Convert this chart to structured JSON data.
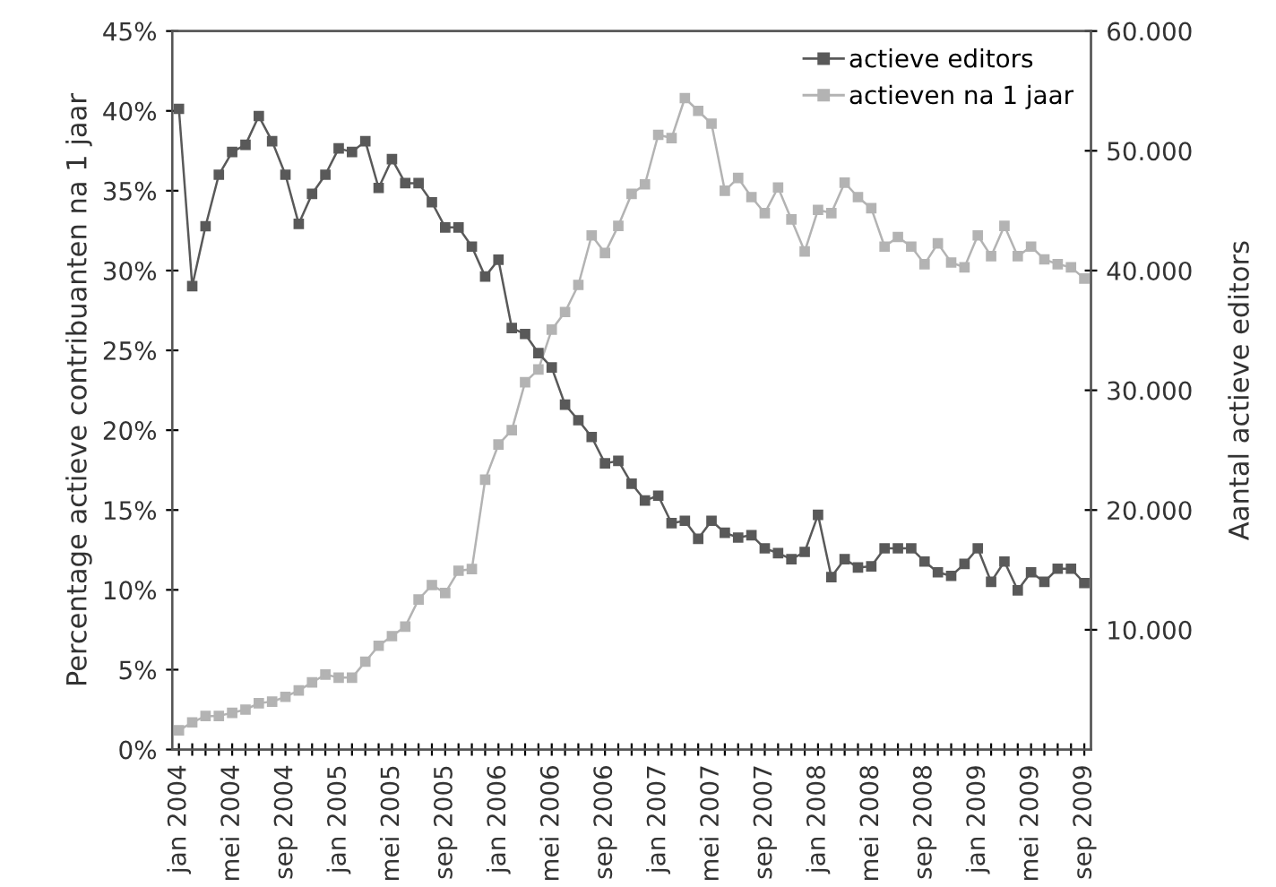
{
  "chart_data": {
    "type": "line",
    "categories": [
      "jan 2004",
      null,
      null,
      null,
      "mei 2004",
      null,
      null,
      null,
      "sep 2004",
      null,
      null,
      null,
      "jan 2005",
      null,
      null,
      null,
      "mei 2005",
      null,
      null,
      null,
      "sep 2005",
      null,
      null,
      null,
      "jan 2006",
      null,
      null,
      null,
      "mei 2006",
      null,
      null,
      null,
      "sep 2006",
      null,
      null,
      null,
      "jan 2007",
      null,
      null,
      null,
      "mei 2007",
      null,
      null,
      null,
      "sep 2007",
      null,
      null,
      null,
      "jan 2008",
      null,
      null,
      null,
      "mei 2008",
      null,
      null,
      null,
      "sep 2008",
      null,
      null,
      null,
      "jan 2009",
      null,
      null,
      null,
      "mei 2009",
      null,
      null,
      null,
      "sep 2009"
    ],
    "ylabel": "Percentage actieve contribuanten na 1 jaar",
    "y2label": "Aantal actieve editors",
    "ylim": [
      0,
      45
    ],
    "yticks": [
      {
        "value": 0,
        "label": "0%"
      },
      {
        "value": 5,
        "label": "5%"
      },
      {
        "value": 10,
        "label": "10%"
      },
      {
        "value": 15,
        "label": "15%"
      },
      {
        "value": 20,
        "label": "20%"
      },
      {
        "value": 25,
        "label": "25%"
      },
      {
        "value": 30,
        "label": "30%"
      },
      {
        "value": 35,
        "label": "35%"
      },
      {
        "value": 40,
        "label": "40%"
      },
      {
        "value": 45,
        "label": "45%"
      }
    ],
    "y2lim": [
      0,
      60000
    ],
    "y2ticks": [
      {
        "value": 10000,
        "label": "10.000"
      },
      {
        "value": 20000,
        "label": "20.000"
      },
      {
        "value": 30000,
        "label": "30.000"
      },
      {
        "value": 40000,
        "label": "40.000"
      },
      {
        "value": 50000,
        "label": "50.000"
      },
      {
        "value": 60000,
        "label": "60.000"
      }
    ],
    "series": [
      {
        "name": "actieve editors",
        "color": "#595959",
        "axis": "y2",
        "values": [
          53500,
          38700,
          43700,
          48000,
          49900,
          50500,
          52900,
          50800,
          48000,
          43900,
          46400,
          48000,
          50200,
          49900,
          50800,
          46900,
          49300,
          47300,
          47300,
          45700,
          43600,
          43600,
          42000,
          39500,
          40900,
          35200,
          34700,
          33100,
          31900,
          28800,
          27500,
          26100,
          23900,
          24100,
          22200,
          20800,
          21200,
          18900,
          19100,
          17600,
          19100,
          18100,
          17700,
          17900,
          16800,
          16400,
          15900,
          16500,
          19600,
          14400,
          15900,
          15200,
          15300,
          16800,
          16800,
          16800,
          15700,
          14800,
          14500,
          15500,
          16800,
          14000,
          15700,
          13300,
          14800,
          14000,
          15100,
          15100,
          13900
        ]
      },
      {
        "name": "actieven na 1 jaar",
        "color": "#b3b3b3",
        "values": [
          1.2,
          1.7,
          2.1,
          2.1,
          2.3,
          2.5,
          2.9,
          3.0,
          3.3,
          3.7,
          4.2,
          4.7,
          4.5,
          4.5,
          5.5,
          6.5,
          7.1,
          7.7,
          9.4,
          10.3,
          9.8,
          11.2,
          11.3,
          16.9,
          19.1,
          20.0,
          23.0,
          23.8,
          26.3,
          27.4,
          29.1,
          32.2,
          31.1,
          32.8,
          34.8,
          35.4,
          38.5,
          38.3,
          40.8,
          40.0,
          39.2,
          35.0,
          35.8,
          34.6,
          33.6,
          35.2,
          33.2,
          31.2,
          33.8,
          33.6,
          35.5,
          34.6,
          33.9,
          31.5,
          32.1,
          31.5,
          30.4,
          31.7,
          30.5,
          30.2,
          32.2,
          30.9,
          32.8,
          30.9,
          31.5,
          30.7,
          30.4,
          30.2,
          29.5
        ]
      }
    ],
    "marker": "square",
    "line_style": "solid",
    "grid": false,
    "legend": "top right"
  }
}
